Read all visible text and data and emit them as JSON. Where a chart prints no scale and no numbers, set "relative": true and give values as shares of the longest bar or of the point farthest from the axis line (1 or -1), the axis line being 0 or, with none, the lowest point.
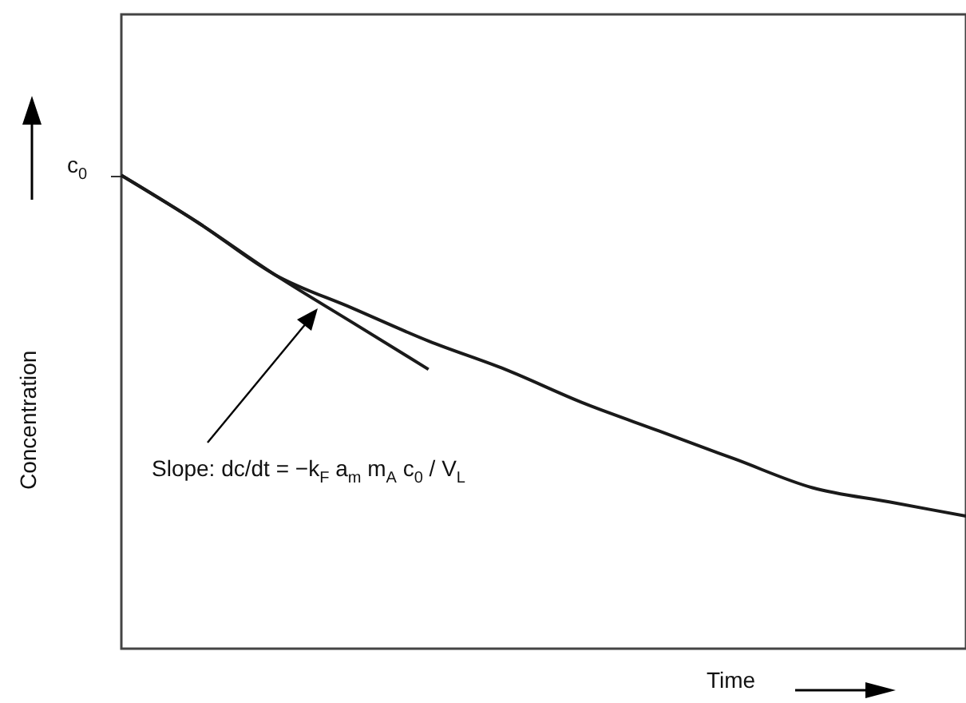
{
  "chart_data": {
    "type": "line",
    "relative": true,
    "xlabel": "Time",
    "ylabel": "Concentration",
    "categories": [
      null,
      null,
      null,
      null,
      null,
      null,
      null,
      null,
      null,
      null,
      null,
      null
    ],
    "series": [
      {
        "color": "#1a1a1a",
        "values": [
          1,
          0.9,
          0.79,
          0.72,
          0.65,
          0.59,
          0.52,
          0.46,
          0.4,
          0.34,
          0.31,
          0.28
        ]
      },
      {
        "color": "#1a1a1a",
        "values": [
          1,
          0.9,
          0.79,
          0.69,
          0.59,
          null,
          null,
          null,
          null,
          null,
          null,
          null
        ]
      }
    ],
    "annotations": [
      "c$_{0}$",
      "Slope: dc/dt = −k$_{F}$ a$_{m}$ m$_{A}$ c$_{0}$ / V$_{L}$"
    ]
  }
}
